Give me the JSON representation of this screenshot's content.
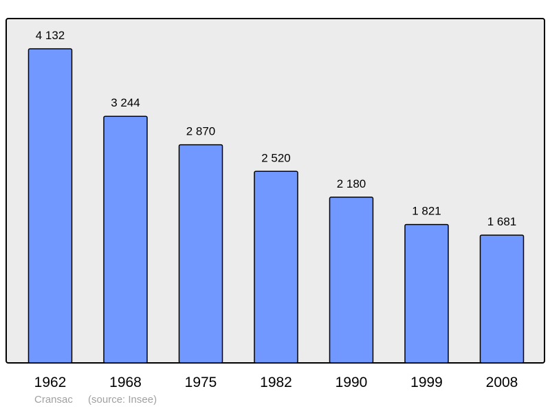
{
  "chart_data": {
    "type": "bar",
    "categories": [
      "1962",
      "1968",
      "1975",
      "1982",
      "1990",
      "1999",
      "2008"
    ],
    "values": [
      4132,
      3244,
      2870,
      2520,
      2180,
      1821,
      1681
    ],
    "value_labels": [
      "4 132",
      "3 244",
      "2 870",
      "2 520",
      "2 180",
      "1 821",
      "1 681"
    ],
    "ylim": [
      0,
      4530
    ],
    "grid": false,
    "title": "",
    "xlabel": "",
    "ylabel": "",
    "colors": {
      "bar": "#7098ff",
      "bar_stroke": "#000000",
      "plot_background": "#ececec",
      "plot_border": "#000000"
    }
  },
  "footer": {
    "place": "Cransac",
    "source": "(source: Insee)"
  }
}
